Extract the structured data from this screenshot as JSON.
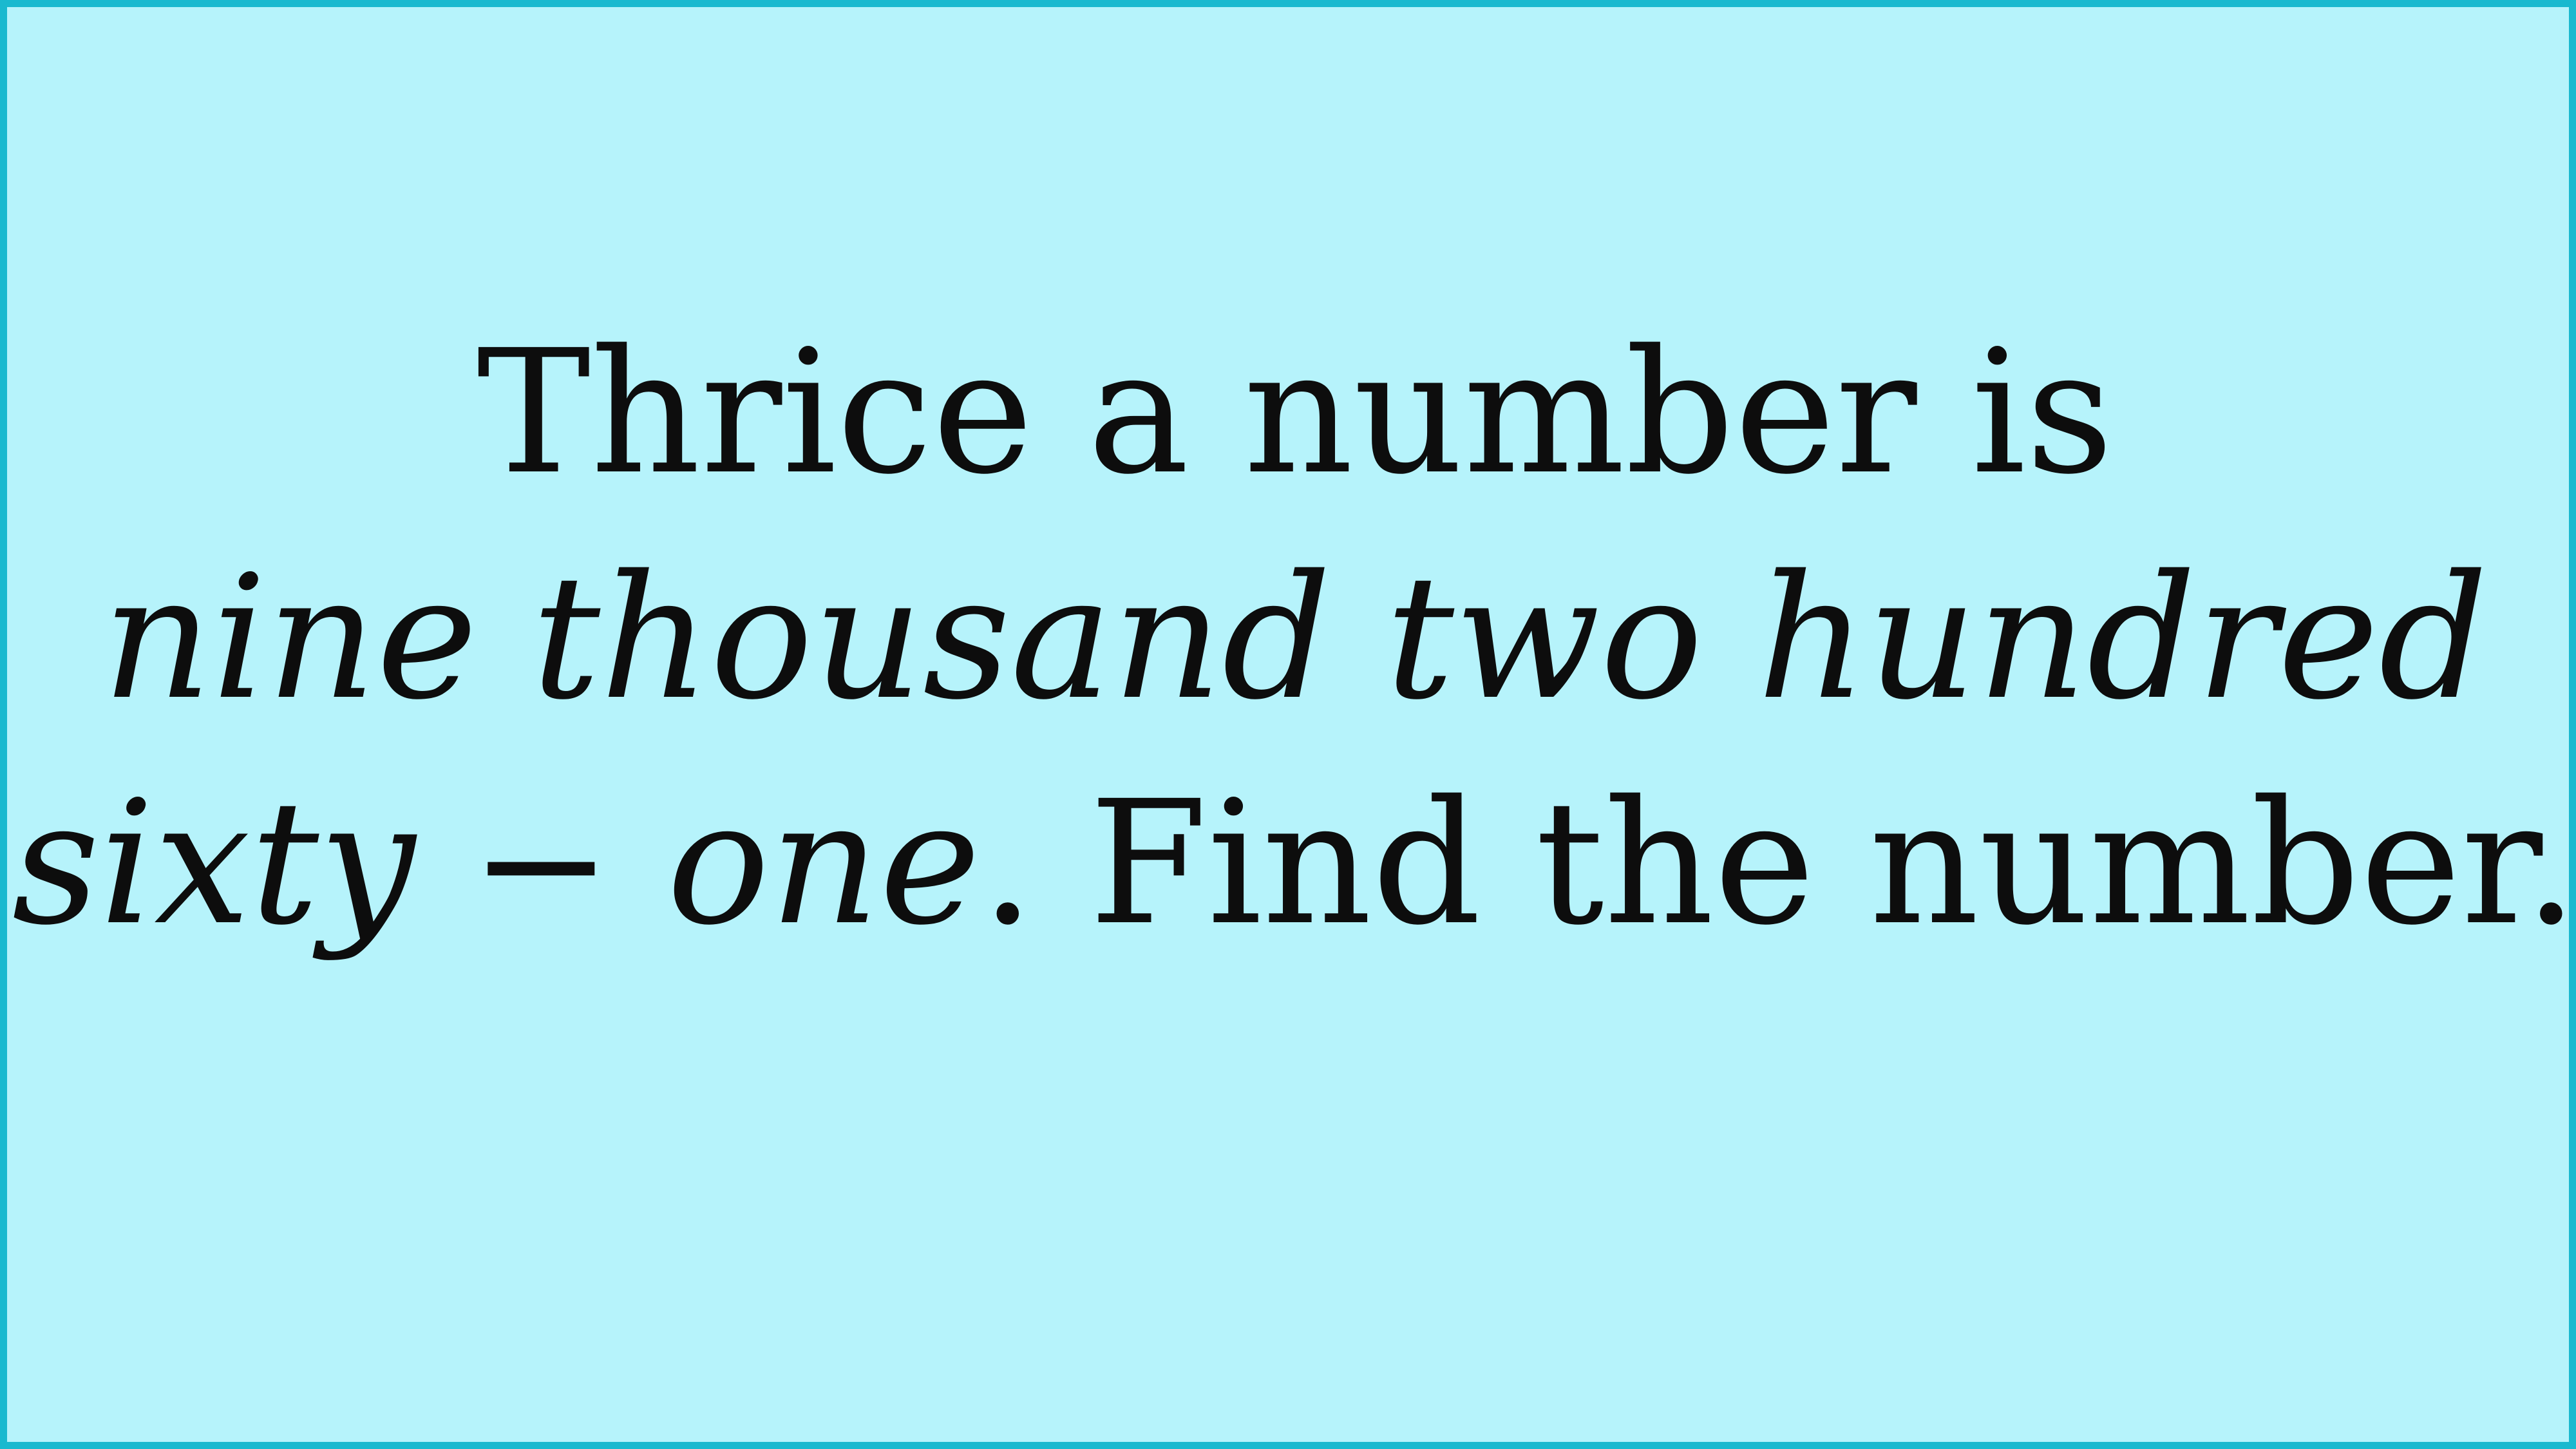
{
  "colors": {
    "background": "#b6f3fb",
    "border": "#19b9cf",
    "text": "#0d0d0d"
  },
  "problem": {
    "line1": "Thrice a number is",
    "line2": "nine thousand two hundred",
    "line3_math": "sixty − one",
    "line3_text": ". Find the number."
  }
}
